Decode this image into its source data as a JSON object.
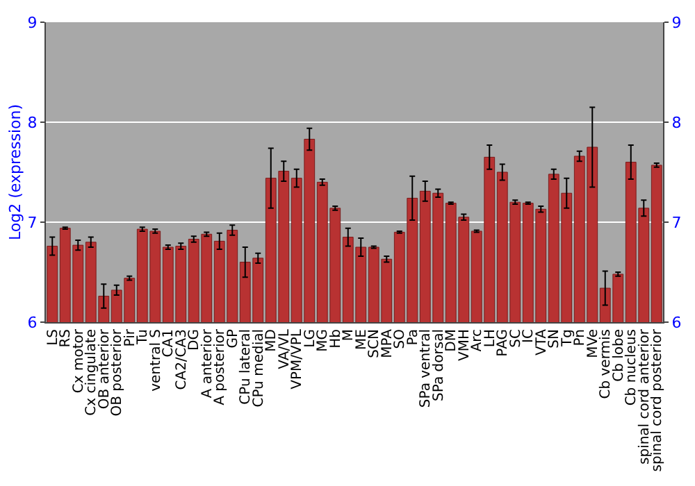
{
  "chart_data": {
    "type": "bar",
    "ylabel": "Log2 (expression)",
    "categories": [
      "LS",
      "RS",
      "Cx motor",
      "Cx cingulate",
      "OB anterior",
      "OB posterior",
      "Pir",
      "Tu",
      "ventral S",
      "CA1",
      "CA2/CA3",
      "DG",
      "A anterior",
      "A posterior",
      "GP",
      "CPu lateral",
      "CPu medial",
      "MD",
      "VA/VL",
      "VPM/VPL",
      "LG",
      "MG",
      "Hb",
      "M",
      "ME",
      "SCN",
      "MPA",
      "SO",
      "Pa",
      "SPa ventral",
      "SPa dorsal",
      "DM",
      "VMH",
      "Arc",
      "LH",
      "PAG",
      "SC",
      "IC",
      "VTA",
      "SN",
      "Tg",
      "Pn",
      "MVe",
      "Cb vermis",
      "Cb lobe",
      "Cb nucleus",
      "spinal cord anterior",
      "spinal cord posterior"
    ],
    "values": [
      6.76,
      6.94,
      6.77,
      6.8,
      6.26,
      6.32,
      6.44,
      6.93,
      6.91,
      6.75,
      6.76,
      6.83,
      6.88,
      6.81,
      6.92,
      6.6,
      6.64,
      7.44,
      7.51,
      7.44,
      7.83,
      7.4,
      7.14,
      6.85,
      6.75,
      6.75,
      6.63,
      6.9,
      7.24,
      7.31,
      7.29,
      7.19,
      7.05,
      6.91,
      7.65,
      7.5,
      7.2,
      7.19,
      7.13,
      7.48,
      7.29,
      7.66,
      7.75,
      6.34,
      6.48,
      7.6,
      7.14,
      7.57
    ],
    "errors": [
      0.09,
      0.01,
      0.05,
      0.05,
      0.12,
      0.05,
      0.02,
      0.02,
      0.02,
      0.02,
      0.03,
      0.03,
      0.02,
      0.08,
      0.05,
      0.15,
      0.05,
      0.3,
      0.1,
      0.09,
      0.11,
      0.03,
      0.02,
      0.09,
      0.09,
      0.01,
      0.03,
      0.01,
      0.22,
      0.1,
      0.04,
      0.01,
      0.03,
      0.01,
      0.12,
      0.08,
      0.02,
      0.01,
      0.03,
      0.05,
      0.15,
      0.05,
      0.4,
      0.17,
      0.02,
      0.17,
      0.08,
      0.02
    ],
    "color": "#b83232",
    "ylim": [
      6,
      9
    ],
    "yticks": [
      6,
      7,
      8,
      9
    ],
    "y2lim": [
      6,
      9
    ],
    "y2ticks": [
      6,
      7,
      8,
      9
    ],
    "grid": "y",
    "legend": false
  }
}
